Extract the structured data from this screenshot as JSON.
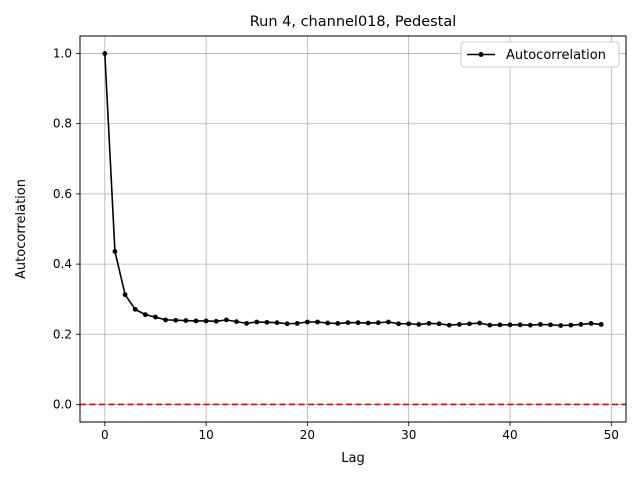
{
  "chart_data": {
    "type": "line",
    "title": "Run 4, channel018, Pedestal",
    "xlabel": "Lag",
    "ylabel": "Autocorrelation",
    "xlim": [
      -2.45,
      51.45
    ],
    "ylim": [
      -0.05,
      1.05
    ],
    "xticks": [
      0,
      10,
      20,
      30,
      40,
      50
    ],
    "yticks": [
      0.0,
      0.2,
      0.4,
      0.6,
      0.8,
      1.0
    ],
    "xtick_labels": [
      "0",
      "10",
      "20",
      "30",
      "40",
      "50"
    ],
    "ytick_labels": [
      "0.0",
      "0.2",
      "0.4",
      "0.6",
      "0.8",
      "1.0"
    ],
    "grid": true,
    "legend_position": "top-right",
    "series": [
      {
        "name": "Autocorrelation",
        "color": "#000000",
        "marker": "circle",
        "x": [
          0,
          1,
          2,
          3,
          4,
          5,
          6,
          7,
          8,
          9,
          10,
          11,
          12,
          13,
          14,
          15,
          16,
          17,
          18,
          19,
          20,
          21,
          22,
          23,
          24,
          25,
          26,
          27,
          28,
          29,
          30,
          31,
          32,
          33,
          34,
          35,
          36,
          37,
          38,
          39,
          40,
          41,
          42,
          43,
          44,
          45,
          46,
          47,
          48,
          49
        ],
        "values": [
          1.0,
          0.436,
          0.313,
          0.271,
          0.256,
          0.249,
          0.241,
          0.24,
          0.239,
          0.238,
          0.238,
          0.237,
          0.241,
          0.236,
          0.231,
          0.235,
          0.234,
          0.233,
          0.23,
          0.231,
          0.235,
          0.235,
          0.232,
          0.231,
          0.233,
          0.233,
          0.232,
          0.233,
          0.235,
          0.23,
          0.23,
          0.228,
          0.231,
          0.23,
          0.226,
          0.228,
          0.23,
          0.232,
          0.226,
          0.227,
          0.227,
          0.227,
          0.226,
          0.228,
          0.227,
          0.225,
          0.226,
          0.228,
          0.231,
          0.228
        ]
      }
    ],
    "reference_line": {
      "y": 0.0,
      "color": "#dd0000",
      "style": "dashed"
    }
  }
}
